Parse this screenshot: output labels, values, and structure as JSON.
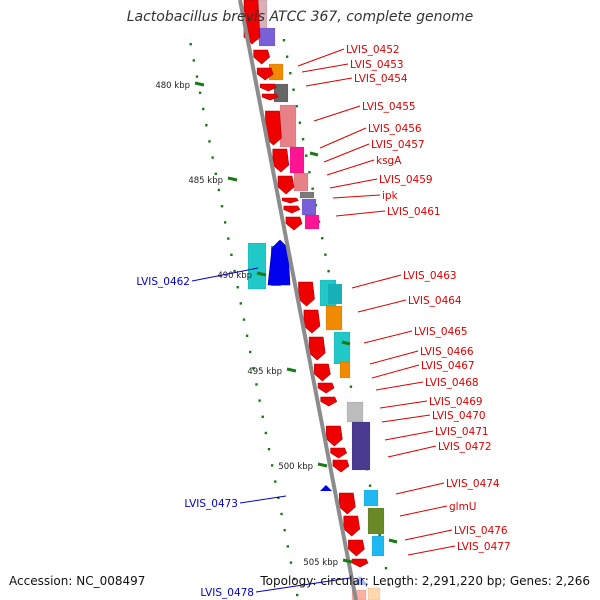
{
  "map": {
    "title": "Lactobacillus brevis ATCC 367, complete genome",
    "accession_text": "Accession: NC_008497",
    "summary_text": "Topology: circular; Length: 2,291,220 bp; Genes: 2,266",
    "colors": {
      "backbone": "#8c8c8c",
      "tick": "#1a7a1a",
      "forward_label": "#dd0000",
      "reverse_label": "#0000cc",
      "cds_forward": "#ee0000",
      "cds_reverse": "#0000ee"
    },
    "scale": {
      "ticks": [
        {
          "label": "480 kbp",
          "position_kbp": 480
        },
        {
          "label": "485 kbp",
          "position_kbp": 485
        },
        {
          "label": "490 kbp",
          "position_kbp": 490
        },
        {
          "label": "495 kbp",
          "position_kbp": 495
        },
        {
          "label": "500 kbp",
          "position_kbp": 500
        },
        {
          "label": "505 kbp",
          "position_kbp": 505
        }
      ]
    },
    "forward_labels": [
      "LVIS_0452",
      "LVIS_0453",
      "LVIS_0454",
      "LVIS_0455",
      "LVIS_0456",
      "LVIS_0457",
      "ksgA",
      "LVIS_0459",
      "ipk",
      "LVIS_0461",
      "LVIS_0463",
      "LVIS_0464",
      "LVIS_0465",
      "LVIS_0466",
      "LVIS_0467",
      "LVIS_0468",
      "LVIS_0469",
      "LVIS_0470",
      "LVIS_0471",
      "LVIS_0472",
      "LVIS_0474",
      "glmU",
      "LVIS_0476",
      "LVIS_0477"
    ],
    "reverse_labels": [
      "LVIS_0462",
      "LVIS_0473",
      "LVIS_0478"
    ]
  }
}
